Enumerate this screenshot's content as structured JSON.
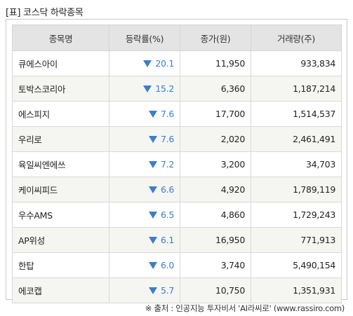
{
  "title": "[표] 코스닥 하락종목",
  "table": {
    "headers": [
      "종목명",
      "등락률(%)",
      "종가(원)",
      "거래량(주)"
    ],
    "rows": [
      {
        "name": "큐에스아이",
        "rate": "20.1",
        "price": "11,950",
        "volume": "933,834"
      },
      {
        "name": "토박스코리아",
        "rate": "15.2",
        "price": "6,360",
        "volume": "1,187,214"
      },
      {
        "name": "에스피지",
        "rate": "7.6",
        "price": "17,700",
        "volume": "1,514,537"
      },
      {
        "name": "우리로",
        "rate": "7.6",
        "price": "2,020",
        "volume": "2,461,491"
      },
      {
        "name": "육일씨엔에쓰",
        "rate": "7.2",
        "price": "3,200",
        "volume": "34,703"
      },
      {
        "name": "케이씨피드",
        "rate": "6.6",
        "price": "4,920",
        "volume": "1,789,119"
      },
      {
        "name": "우수AMS",
        "rate": "6.5",
        "price": "4,860",
        "volume": "1,729,243"
      },
      {
        "name": "AP위성",
        "rate": "6.1",
        "price": "16,950",
        "volume": "771,913"
      },
      {
        "name": "한탑",
        "rate": "6.0",
        "price": "3,740",
        "volume": "5,490,154"
      },
      {
        "name": "에코캡",
        "rate": "5.7",
        "price": "10,750",
        "volume": "1,351,931"
      }
    ]
  },
  "down_icon": "down-triangle-icon",
  "colors": {
    "down": "#3b7ec8",
    "header_bg": "#e4e4e4",
    "alt_row_bg": "#f5f5f2"
  },
  "source": "※ 출처 : 인공지능 투자비서 'AI라씨로' (www.rassiro.com)"
}
